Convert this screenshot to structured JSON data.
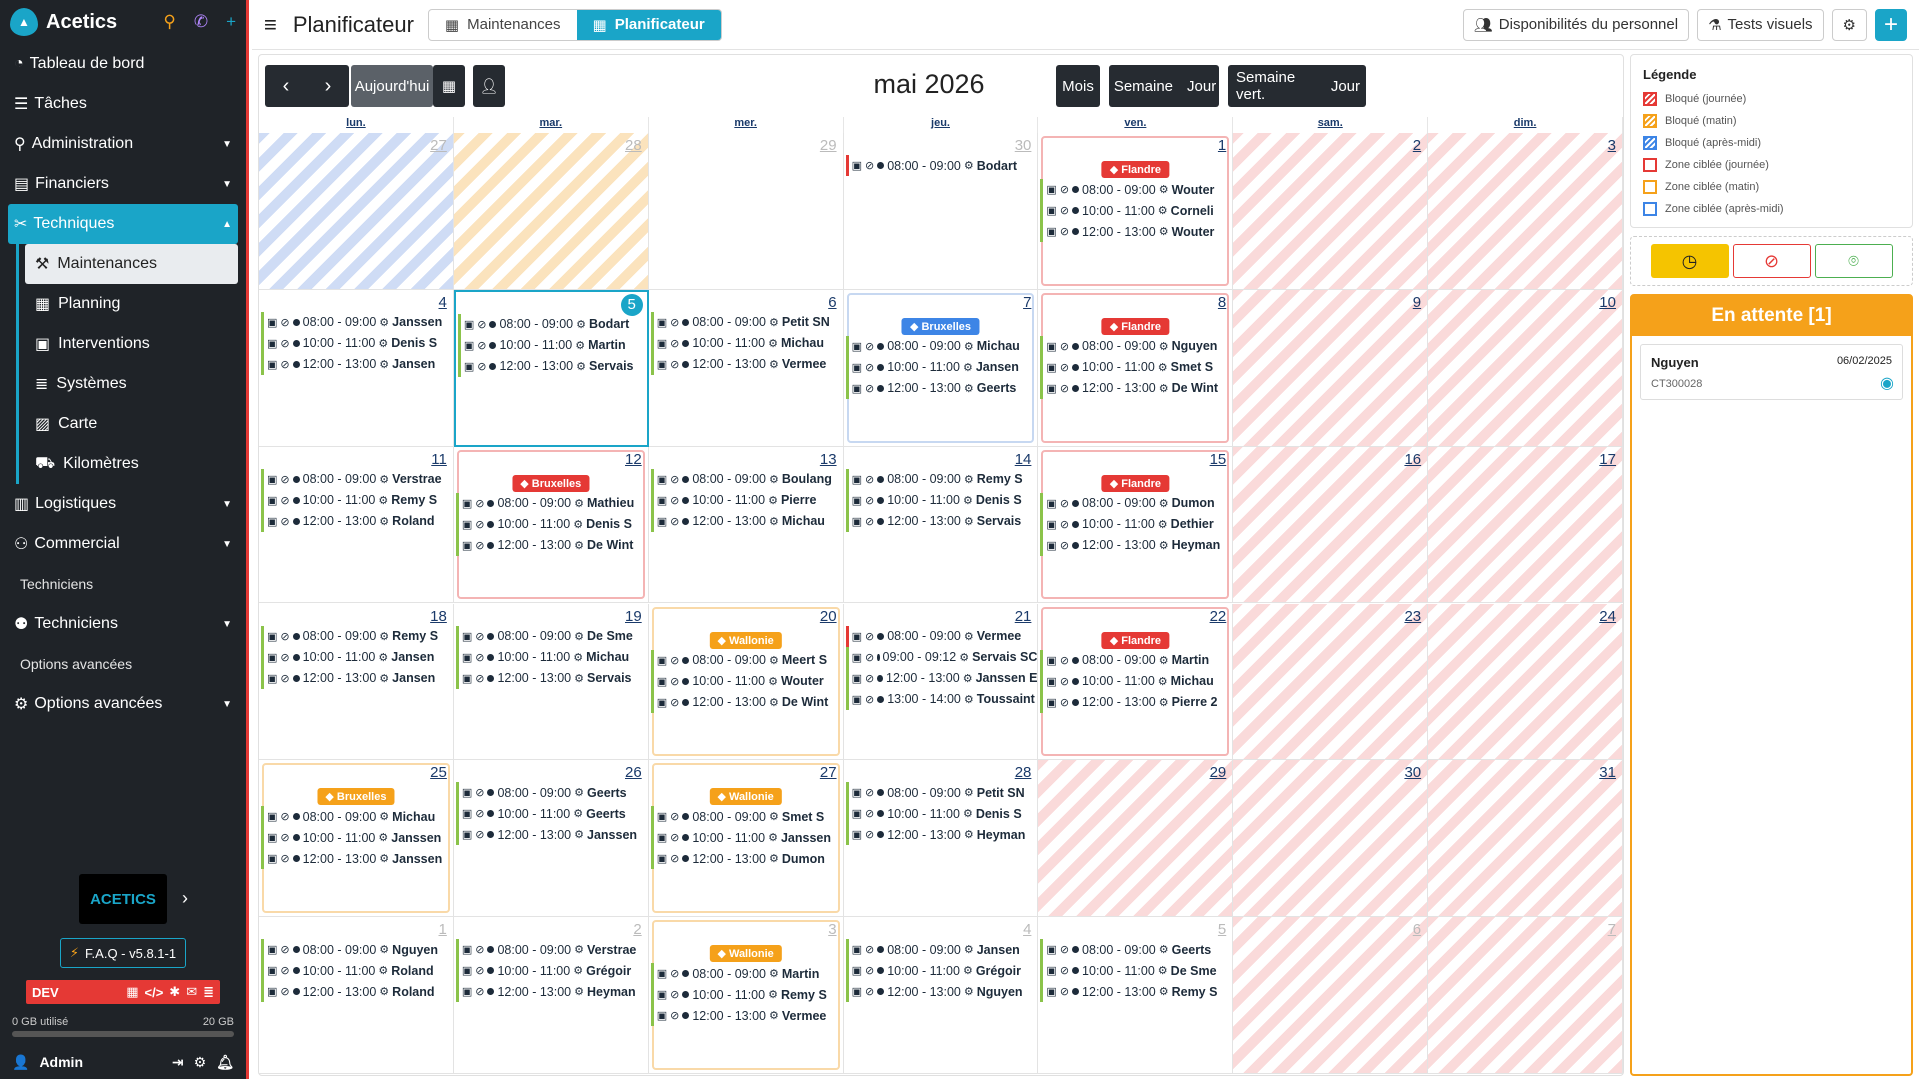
{
  "app": {
    "brand": "Acetics",
    "bottom_logo": "ACETICS",
    "faq": "F.A.Q - v5.8.1-1",
    "dev": "DEV",
    "storage_used": "0 GB utilisé",
    "storage_total": "20 GB",
    "user": "Admin"
  },
  "sidebar": {
    "items": [
      {
        "label": "Tableau de bord",
        "icon": "dashboard-icon",
        "type": "item"
      },
      {
        "label": "Tâches",
        "icon": "list-icon",
        "type": "item"
      },
      {
        "label": "Administration",
        "icon": "paperclip-icon",
        "type": "item",
        "chevron": "⌄"
      },
      {
        "label": "Financiers",
        "icon": "finance-icon",
        "type": "item",
        "chevron": "⌄"
      },
      {
        "label": "Techniques",
        "icon": "tools-icon",
        "type": "active",
        "chevron": "⌃"
      },
      {
        "label": "Maintenances",
        "icon": "wrench-icon",
        "type": "sub",
        "selected": true
      },
      {
        "label": "Planning",
        "icon": "calendar-icon",
        "type": "sub"
      },
      {
        "label": "Interventions",
        "icon": "toolbox-icon",
        "type": "sub"
      },
      {
        "label": "Systèmes",
        "icon": "server-icon",
        "type": "sub"
      },
      {
        "label": "Carte",
        "icon": "map-icon",
        "type": "sub"
      },
      {
        "label": "Kilomètres",
        "icon": "car-icon",
        "type": "sub"
      },
      {
        "label": "Logistiques",
        "icon": "book-icon",
        "type": "item",
        "chevron": "⌄"
      },
      {
        "label": "Commercial",
        "icon": "people-icon",
        "type": "item",
        "chevron": "⌄"
      },
      {
        "label": "Techniciens",
        "type": "label"
      },
      {
        "label": "Techniciens",
        "icon": "user-icon",
        "type": "item",
        "chevron": "⌄"
      },
      {
        "label": "Options avancées",
        "type": "label"
      },
      {
        "label": "Options avancées",
        "icon": "gear-icon",
        "type": "item",
        "chevron": "⌄"
      }
    ]
  },
  "topbar": {
    "title": "Planificateur",
    "tabs": [
      {
        "label": "Maintenances",
        "active": false
      },
      {
        "label": "Planificateur",
        "active": true
      }
    ],
    "staff_btn": "Disponibilités du personnel",
    "tests_btn": "Tests visuels"
  },
  "calendar": {
    "today_btn": "Aujourd'hui",
    "title": "mai 2026",
    "month_btn": "Mois",
    "week_btn": "Semaine",
    "day_btn": "Jour",
    "vweek_btn": "Semaine vert.",
    "vday_btn": "Jour",
    "weekdays": [
      "lun.",
      "mar.",
      "mer.",
      "jeu.",
      "ven.",
      "sam.",
      "dim."
    ],
    "weeks": [
      [
        {
          "d": "27",
          "f": true,
          "bg": "blue"
        },
        {
          "d": "28",
          "f": true,
          "bg": "orange"
        },
        {
          "d": "29",
          "f": true
        },
        {
          "d": "30",
          "f": true,
          "ev": [
            {
              "t": "08:00 - 09:00",
              "n": "Bodart",
              "red": true
            }
          ]
        },
        {
          "d": "1",
          "frame": "red",
          "region": "Flandre",
          "rc": "#e53935",
          "ev": [
            {
              "t": "08:00 - 09:00",
              "n": "Wouter"
            },
            {
              "t": "10:00 - 11:00",
              "n": "Corneli"
            },
            {
              "t": "12:00 - 13:00",
              "n": "Wouter"
            }
          ]
        },
        {
          "d": "2",
          "bg": "red"
        },
        {
          "d": "3",
          "bg": "red"
        }
      ],
      [
        {
          "d": "4",
          "ev": [
            {
              "t": "08:00 - 09:00",
              "n": "Janssen"
            },
            {
              "t": "10:00 - 11:00",
              "n": "Denis S"
            },
            {
              "t": "12:00 - 13:00",
              "n": "Jansen"
            }
          ]
        },
        {
          "d": "5",
          "today": true,
          "ev": [
            {
              "t": "08:00 - 09:00",
              "n": "Bodart"
            },
            {
              "t": "10:00 - 11:00",
              "n": "Martin"
            },
            {
              "t": "12:00 - 13:00",
              "n": "Servais"
            }
          ]
        },
        {
          "d": "6",
          "ev": [
            {
              "t": "08:00 - 09:00",
              "n": "Petit SN"
            },
            {
              "t": "10:00 - 11:00",
              "n": "Michau"
            },
            {
              "t": "12:00 - 13:00",
              "n": "Vermee"
            }
          ]
        },
        {
          "d": "7",
          "frame": "blue",
          "region": "Bruxelles",
          "rc": "#3d85e6",
          "ev": [
            {
              "t": "08:00 - 09:00",
              "n": "Michau"
            },
            {
              "t": "10:00 - 11:00",
              "n": "Jansen"
            },
            {
              "t": "12:00 - 13:00",
              "n": "Geerts"
            }
          ]
        },
        {
          "d": "8",
          "frame": "red",
          "region": "Flandre",
          "rc": "#e53935",
          "ev": [
            {
              "t": "08:00 - 09:00",
              "n": "Nguyen"
            },
            {
              "t": "10:00 - 11:00",
              "n": "Smet S"
            },
            {
              "t": "12:00 - 13:00",
              "n": "De Wint"
            }
          ]
        },
        {
          "d": "9",
          "bg": "red"
        },
        {
          "d": "10",
          "bg": "red"
        }
      ],
      [
        {
          "d": "11",
          "ev": [
            {
              "t": "08:00 - 09:00",
              "n": "Verstrae"
            },
            {
              "t": "10:00 - 11:00",
              "n": "Remy S"
            },
            {
              "t": "12:00 - 13:00",
              "n": "Roland"
            }
          ]
        },
        {
          "d": "12",
          "frame": "red",
          "region": "Bruxelles",
          "rc": "#e53935",
          "ev": [
            {
              "t": "08:00 - 09:00",
              "n": "Mathieu"
            },
            {
              "t": "10:00 - 11:00",
              "n": "Denis S"
            },
            {
              "t": "12:00 - 13:00",
              "n": "De Wint"
            }
          ]
        },
        {
          "d": "13",
          "ev": [
            {
              "t": "08:00 - 09:00",
              "n": "Boulang"
            },
            {
              "t": "10:00 - 11:00",
              "n": "Pierre"
            },
            {
              "t": "12:00 - 13:00",
              "n": "Michau"
            }
          ]
        },
        {
          "d": "14",
          "ev": [
            {
              "t": "08:00 - 09:00",
              "n": "Remy S"
            },
            {
              "t": "10:00 - 11:00",
              "n": "Denis S"
            },
            {
              "t": "12:00 - 13:00",
              "n": "Servais"
            }
          ]
        },
        {
          "d": "15",
          "frame": "red",
          "region": "Flandre",
          "rc": "#e53935",
          "ev": [
            {
              "t": "08:00 - 09:00",
              "n": "Dumon"
            },
            {
              "t": "10:00 - 11:00",
              "n": "Dethier"
            },
            {
              "t": "12:00 - 13:00",
              "n": "Heyman"
            }
          ]
        },
        {
          "d": "16",
          "bg": "red"
        },
        {
          "d": "17",
          "bg": "red"
        }
      ],
      [
        {
          "d": "18",
          "ev": [
            {
              "t": "08:00 - 09:00",
              "n": "Remy S"
            },
            {
              "t": "10:00 - 11:00",
              "n": "Jansen"
            },
            {
              "t": "12:00 - 13:00",
              "n": "Jansen"
            }
          ]
        },
        {
          "d": "19",
          "ev": [
            {
              "t": "08:00 - 09:00",
              "n": "De Sme"
            },
            {
              "t": "10:00 - 11:00",
              "n": "Michau"
            },
            {
              "t": "12:00 - 13:00",
              "n": "Servais"
            }
          ]
        },
        {
          "d": "20",
          "frame": "orange",
          "region": "Wallonie",
          "rc": "#f5a11a",
          "ev": [
            {
              "t": "08:00 - 09:00",
              "n": "Meert S"
            },
            {
              "t": "10:00 - 11:00",
              "n": "Wouter"
            },
            {
              "t": "12:00 - 13:00",
              "n": "De Wint"
            }
          ]
        },
        {
          "d": "21",
          "ev": [
            {
              "t": "08:00 - 09:00",
              "n": "Vermee",
              "red": true
            },
            {
              "t": "09:00 - 09:12",
              "n": "Servais SC"
            },
            {
              "t": "12:00 - 13:00",
              "n": "Janssen E"
            },
            {
              "t": "13:00 - 14:00",
              "n": "Toussaint"
            }
          ]
        },
        {
          "d": "22",
          "frame": "red",
          "region": "Flandre",
          "rc": "#e53935",
          "ev": [
            {
              "t": "08:00 - 09:00",
              "n": "Martin"
            },
            {
              "t": "10:00 - 11:00",
              "n": "Michau"
            },
            {
              "t": "12:00 - 13:00",
              "n": "Pierre 2"
            }
          ]
        },
        {
          "d": "23",
          "bg": "red"
        },
        {
          "d": "24",
          "bg": "red"
        }
      ],
      [
        {
          "d": "25",
          "frame": "orange",
          "region": "Bruxelles",
          "rc": "#f5a11a",
          "ev": [
            {
              "t": "08:00 - 09:00",
              "n": "Michau"
            },
            {
              "t": "10:00 - 11:00",
              "n": "Janssen"
            },
            {
              "t": "12:00 - 13:00",
              "n": "Janssen"
            }
          ]
        },
        {
          "d": "26",
          "ev": [
            {
              "t": "08:00 - 09:00",
              "n": "Geerts"
            },
            {
              "t": "10:00 - 11:00",
              "n": "Geerts"
            },
            {
              "t": "12:00 - 13:00",
              "n": "Janssen"
            }
          ]
        },
        {
          "d": "27",
          "frame": "orange",
          "region": "Wallonie",
          "rc": "#f5a11a",
          "ev": [
            {
              "t": "08:00 - 09:00",
              "n": "Smet S"
            },
            {
              "t": "10:00 - 11:00",
              "n": "Janssen"
            },
            {
              "t": "12:00 - 13:00",
              "n": "Dumon"
            }
          ]
        },
        {
          "d": "28",
          "ev": [
            {
              "t": "08:00 - 09:00",
              "n": "Petit SN"
            },
            {
              "t": "10:00 - 11:00",
              "n": "Denis S"
            },
            {
              "t": "12:00 - 13:00",
              "n": "Heyman"
            }
          ]
        },
        {
          "d": "29",
          "bg": "red"
        },
        {
          "d": "30",
          "bg": "red"
        },
        {
          "d": "31",
          "bg": "red"
        }
      ],
      [
        {
          "d": "1",
          "f": true,
          "ev": [
            {
              "t": "08:00 - 09:00",
              "n": "Nguyen"
            },
            {
              "t": "10:00 - 11:00",
              "n": "Roland"
            },
            {
              "t": "12:00 - 13:00",
              "n": "Roland"
            }
          ]
        },
        {
          "d": "2",
          "f": true,
          "ev": [
            {
              "t": "08:00 - 09:00",
              "n": "Verstrae"
            },
            {
              "t": "10:00 - 11:00",
              "n": "Grégoir"
            },
            {
              "t": "12:00 - 13:00",
              "n": "Heyman"
            }
          ]
        },
        {
          "d": "3",
          "f": true,
          "frame": "orange",
          "region": "Wallonie",
          "rc": "#f5a11a",
          "ev": [
            {
              "t": "08:00 - 09:00",
              "n": "Martin"
            },
            {
              "t": "10:00 - 11:00",
              "n": "Remy S"
            },
            {
              "t": "12:00 - 13:00",
              "n": "Vermee"
            }
          ]
        },
        {
          "d": "4",
          "f": true,
          "ev": [
            {
              "t": "08:00 - 09:00",
              "n": "Jansen"
            },
            {
              "t": "10:00 - 11:00",
              "n": "Grégoir"
            },
            {
              "t": "12:00 - 13:00",
              "n": "Nguyen"
            }
          ]
        },
        {
          "d": "5",
          "f": true,
          "ev": [
            {
              "t": "08:00 - 09:00",
              "n": "Geerts"
            },
            {
              "t": "10:00 - 11:00",
              "n": "De Sme"
            },
            {
              "t": "12:00 - 13:00",
              "n": "Remy S"
            }
          ]
        },
        {
          "d": "6",
          "f": true,
          "bg": "red"
        },
        {
          "d": "7",
          "f": true,
          "bg": "red"
        }
      ]
    ]
  },
  "legend": {
    "title": "Légende",
    "items": [
      {
        "label": "Bloqué (journée)",
        "color": "#e53935",
        "kind": "fill"
      },
      {
        "label": "Bloqué (matin)",
        "color": "#f5a11a",
        "kind": "fill"
      },
      {
        "label": "Bloqué (après-midi)",
        "color": "#3d85e6",
        "kind": "fill"
      },
      {
        "label": "Zone ciblée (journée)",
        "color": "#e53935",
        "kind": "border"
      },
      {
        "label": "Zone ciblée (matin)",
        "color": "#f5a11a",
        "kind": "border"
      },
      {
        "label": "Zone ciblée (après-midi)",
        "color": "#3d85e6",
        "kind": "border"
      }
    ]
  },
  "pending": {
    "title": "En attente [1]",
    "cards": [
      {
        "name": "Nguyen",
        "date": "06/02/2025",
        "code": "CT300028"
      }
    ]
  }
}
